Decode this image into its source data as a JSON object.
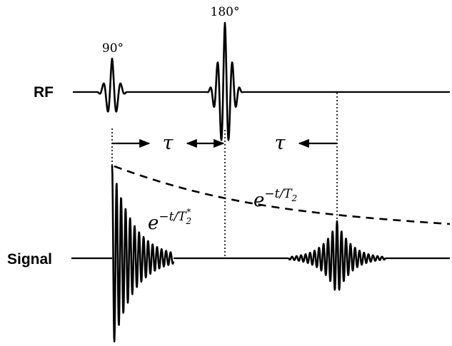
{
  "rf_label": "RF",
  "signal_label": "Signal",
  "pulse_90_label": "90°",
  "pulse_180_label": "180°",
  "tau_1": "τ",
  "tau_2": "τ",
  "fid_decay": {
    "base": "e",
    "exp": "−t/T",
    "sub": "2",
    "sup": "*"
  },
  "t2_decay": {
    "base": "e",
    "exp": "−t/T",
    "sub": "2"
  }
}
